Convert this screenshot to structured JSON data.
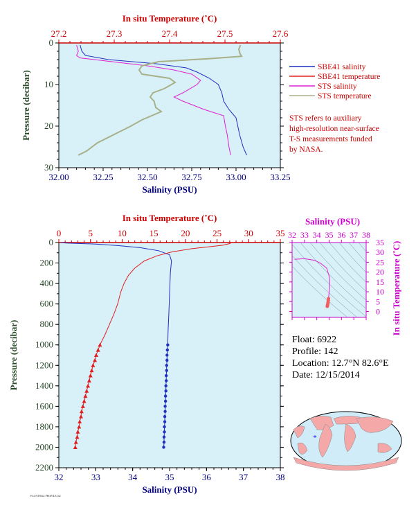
{
  "colors": {
    "sbe_salinity": "#1f2fbf",
    "sbe_temperature": "#e02020",
    "sts_salinity": "#e020d0",
    "sts_temperature": "#a8b088",
    "temp_axis": "#cc0000",
    "salinity_axis": "#000080",
    "pressure_axis": "#2a4a2a",
    "ts_axis": "#cc00cc",
    "plot_bg": "#d8f0f8"
  },
  "legend": {
    "items": [
      {
        "label": "SBE41 salinity",
        "color_key": "sbe_salinity"
      },
      {
        "label": "SBE41 temperature",
        "color_key": "sbe_temperature"
      },
      {
        "label": "STS salinity",
        "color_key": "sts_salinity"
      },
      {
        "label": "STS temperature",
        "color_key": "sts_temperature"
      }
    ],
    "note_lines": [
      "STS refers to auxiliary",
      "high-resolution near-surface",
      "T-S measurements funded",
      "by NASA."
    ]
  },
  "info": {
    "lines": [
      "Float:  6922",
      "Profile:  142",
      "Location:  12.7°N  82.6°E",
      "Date:  12/15/2014"
    ]
  },
  "footer_tag": "FLOAT6922 PROFILE142",
  "chart_data": [
    {
      "type": "line",
      "id": "near-surface",
      "xlabel": "Salinity (PSU)",
      "x2label": "In situ Temperature (˚C)",
      "ylabel": "Pressure (decibar)",
      "xlim": [
        32.0,
        33.25
      ],
      "x_ticks": [
        "32.00",
        "32.25",
        "32.50",
        "32.75",
        "33.00",
        "33.25"
      ],
      "x2lim": [
        27.2,
        27.6
      ],
      "x2_ticks": [
        "27.2",
        "27.3",
        "27.4",
        "27.5",
        "27.6"
      ],
      "ylim": [
        0,
        30
      ],
      "y_ticks": [
        "0",
        "10",
        "20",
        "30"
      ],
      "series": [
        {
          "name": "SBE41 salinity",
          "axis": "salinity",
          "color_key": "sbe_salinity",
          "points": [
            [
              32.12,
              0.5
            ],
            [
              32.13,
              2
            ],
            [
              32.15,
              3
            ],
            [
              32.28,
              4
            ],
            [
              32.55,
              5
            ],
            [
              32.72,
              6
            ],
            [
              32.78,
              7
            ],
            [
              32.85,
              8.5
            ],
            [
              32.9,
              10
            ],
            [
              32.92,
              12
            ],
            [
              32.93,
              14
            ],
            [
              32.96,
              16
            ],
            [
              33.0,
              18
            ],
            [
              33.02,
              22
            ],
            [
              33.04,
              25
            ],
            [
              33.06,
              27
            ]
          ]
        },
        {
          "name": "STS salinity",
          "axis": "salinity",
          "color_key": "sts_salinity",
          "points": [
            [
              32.1,
              0.5
            ],
            [
              32.11,
              2
            ],
            [
              32.1,
              3
            ],
            [
              32.12,
              3.6
            ],
            [
              32.3,
              4.5
            ],
            [
              32.5,
              5.5
            ],
            [
              32.65,
              6.5
            ],
            [
              32.75,
              7.5
            ],
            [
              32.8,
              9
            ],
            [
              32.78,
              10
            ],
            [
              32.7,
              12
            ],
            [
              32.65,
              13
            ],
            [
              32.7,
              14
            ],
            [
              32.82,
              16
            ],
            [
              32.93,
              17.5
            ],
            [
              32.94,
              20
            ],
            [
              32.95,
              22
            ],
            [
              32.96,
              25
            ],
            [
              32.97,
              27
            ]
          ]
        },
        {
          "name": "STS temperature",
          "axis": "temperature",
          "color_key": "sts_temperature",
          "points": [
            [
              27.528,
              0.5
            ],
            [
              27.525,
              1.5
            ],
            [
              27.527,
              2.5
            ],
            [
              27.53,
              3.2
            ],
            [
              27.47,
              3.8
            ],
            [
              27.38,
              4.5
            ],
            [
              27.35,
              5.5
            ],
            [
              27.345,
              6.5
            ],
            [
              27.35,
              7.5
            ],
            [
              27.4,
              8.5
            ],
            [
              27.41,
              9.5
            ],
            [
              27.39,
              11
            ],
            [
              27.37,
              12
            ],
            [
              27.365,
              13
            ],
            [
              27.372,
              14
            ],
            [
              27.375,
              15.5
            ],
            [
              27.385,
              16.5
            ],
            [
              27.35,
              18.5
            ],
            [
              27.33,
              20
            ],
            [
              27.3,
              22
            ],
            [
              27.27,
              24
            ],
            [
              27.25,
              26
            ],
            [
              27.235,
              27
            ]
          ]
        }
      ]
    },
    {
      "type": "line",
      "id": "full-depth",
      "xlabel": "Salinity (PSU)",
      "x2label": "In situ Temperature (˚C)",
      "ylabel": "Pressure (decibar)",
      "xlim": [
        32,
        38
      ],
      "x_ticks": [
        "32",
        "33",
        "34",
        "35",
        "36",
        "37",
        "38"
      ],
      "x2lim": [
        0,
        35
      ],
      "x2_ticks": [
        "0",
        "5",
        "10",
        "15",
        "20",
        "25",
        "30",
        "35"
      ],
      "ylim": [
        0,
        2200
      ],
      "y_ticks": [
        "0",
        "200",
        "400",
        "600",
        "800",
        "1000",
        "1200",
        "1400",
        "1600",
        "1800",
        "2000",
        "2200"
      ],
      "series": [
        {
          "name": "SBE41 salinity",
          "axis": "salinity",
          "color_key": "sbe_salinity",
          "marker": "none",
          "points": [
            [
              32.05,
              0
            ],
            [
              32.2,
              5
            ],
            [
              33.0,
              15
            ],
            [
              33.6,
              30
            ],
            [
              34.2,
              50
            ],
            [
              34.7,
              80
            ],
            [
              35.0,
              120
            ],
            [
              35.05,
              180
            ],
            [
              35.02,
              300
            ],
            [
              35.0,
              500
            ],
            [
              34.98,
              700
            ],
            [
              34.96,
              850
            ],
            [
              34.95,
              1000
            ]
          ]
        },
        {
          "name": "SBE41 salinity",
          "axis": "salinity",
          "color_key": "sbe_salinity",
          "marker": "dot",
          "points": [
            [
              34.95,
              1000
            ],
            [
              34.94,
              1050
            ],
            [
              34.93,
              1100
            ],
            [
              34.93,
              1150
            ],
            [
              34.92,
              1200
            ],
            [
              34.92,
              1250
            ],
            [
              34.91,
              1300
            ],
            [
              34.91,
              1350
            ],
            [
              34.9,
              1400
            ],
            [
              34.9,
              1450
            ],
            [
              34.89,
              1500
            ],
            [
              34.89,
              1550
            ],
            [
              34.88,
              1600
            ],
            [
              34.88,
              1650
            ],
            [
              34.87,
              1700
            ],
            [
              34.87,
              1750
            ],
            [
              34.86,
              1800
            ],
            [
              34.86,
              1850
            ],
            [
              34.85,
              1900
            ],
            [
              34.85,
              1950
            ],
            [
              34.84,
              2000
            ]
          ]
        },
        {
          "name": "SBE41 temperature",
          "axis": "temperature",
          "color_key": "sbe_temperature",
          "marker": "none",
          "points": [
            [
              27.3,
              0
            ],
            [
              27.0,
              10
            ],
            [
              26.0,
              25
            ],
            [
              24.0,
              40
            ],
            [
              21.0,
              60
            ],
            [
              18.0,
              90
            ],
            [
              15.5,
              130
            ],
            [
              13.5,
              180
            ],
            [
              12.0,
              250
            ],
            [
              11.0,
              320
            ],
            [
              10.3,
              400
            ],
            [
              9.8,
              480
            ],
            [
              9.3,
              600
            ],
            [
              8.7,
              700
            ],
            [
              8.0,
              800
            ],
            [
              7.3,
              900
            ],
            [
              6.5,
              1000
            ]
          ]
        },
        {
          "name": "SBE41 temperature",
          "axis": "temperature",
          "color_key": "sbe_temperature",
          "marker": "triangle",
          "points": [
            [
              6.5,
              1000
            ],
            [
              6.2,
              1050
            ],
            [
              5.9,
              1100
            ],
            [
              5.7,
              1150
            ],
            [
              5.4,
              1200
            ],
            [
              5.2,
              1250
            ],
            [
              5.0,
              1300
            ],
            [
              4.8,
              1350
            ],
            [
              4.6,
              1400
            ],
            [
              4.4,
              1450
            ],
            [
              4.2,
              1500
            ],
            [
              4.0,
              1550
            ],
            [
              3.8,
              1600
            ],
            [
              3.6,
              1650
            ],
            [
              3.5,
              1700
            ],
            [
              3.3,
              1750
            ],
            [
              3.2,
              1800
            ],
            [
              3.0,
              1850
            ],
            [
              2.9,
              1900
            ],
            [
              2.7,
              1950
            ],
            [
              2.6,
              2000
            ]
          ]
        }
      ]
    },
    {
      "type": "line",
      "id": "ts-diagram",
      "xlabel": "Salinity (PSU)",
      "ylabel": "In situ Temperature (˚C)",
      "xlim": [
        32,
        38
      ],
      "x_ticks": [
        "32",
        "33",
        "34",
        "35",
        "36",
        "37",
        "38"
      ],
      "ylim": [
        -3,
        35
      ],
      "y_ticks": [
        "0",
        "5",
        "10",
        "15",
        "20",
        "25",
        "30",
        "35"
      ],
      "series": [
        {
          "name": "T-S",
          "color_key": "sts_salinity",
          "points": [
            [
              32.2,
              26.5
            ],
            [
              33.0,
              26.8
            ],
            [
              33.8,
              26.0
            ],
            [
              34.3,
              24.5
            ],
            [
              34.8,
              22.0
            ],
            [
              35.0,
              18.0
            ],
            [
              35.05,
              15.0
            ],
            [
              35.03,
              12.0
            ],
            [
              35.0,
              10.0
            ],
            [
              34.97,
              8.0
            ],
            [
              34.95,
              6.5
            ]
          ]
        },
        {
          "name": "T-S deep",
          "color_key": "sbe_temperature",
          "marker": "dot",
          "points": [
            [
              34.95,
              6.5
            ],
            [
              34.93,
              5.5
            ],
            [
              34.91,
              4.5
            ],
            [
              34.89,
              3.8
            ],
            [
              34.87,
              3.2
            ],
            [
              34.85,
              2.6
            ]
          ]
        }
      ]
    }
  ]
}
